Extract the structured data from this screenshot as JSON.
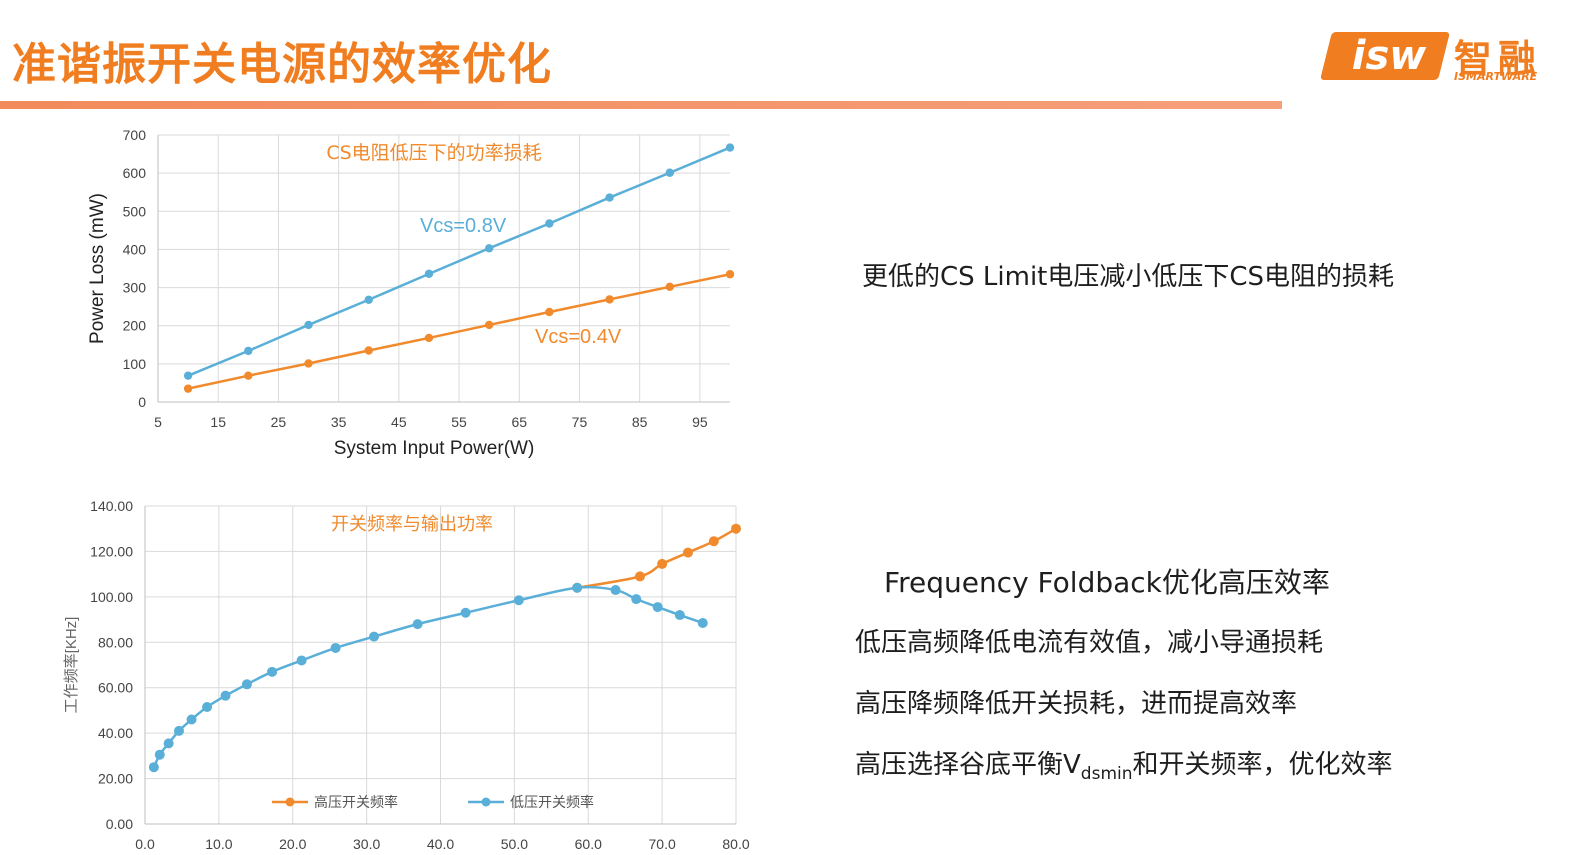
{
  "slide": {
    "title": "准谐振开关电源的效率优化"
  },
  "logo": {
    "mark": "isw",
    "cn": "智融",
    "en": "ISMARTWARE"
  },
  "notes": {
    "cs_limit": "更低的CS Limit电压减小低压下CS电阻的损耗",
    "foldback_title": "Frequency Foldback优化高压效率",
    "low_voltage": "低压高频降低电流有效值，减小导通损耗",
    "high_voltage": "高压降频降低开关损耗，进而提高效率",
    "valley_prefix": "高压选择谷底平衡V",
    "valley_sub": "dsmin",
    "valley_suffix": "和开关频率，优化效率"
  },
  "chart_data": [
    {
      "type": "line",
      "title": "CS电阻低压下的功率损耗",
      "xlabel": "System Input Power(W)",
      "ylabel": "Power Loss (mW)",
      "xlim": [
        5,
        100
      ],
      "ylim": [
        0,
        700
      ],
      "xticks": [
        "5",
        "15",
        "25",
        "35",
        "45",
        "55",
        "65",
        "75",
        "85",
        "95"
      ],
      "yticks": [
        "0",
        "100",
        "200",
        "300",
        "400",
        "500",
        "600",
        "700"
      ],
      "grid": true,
      "series": [
        {
          "name": "Vcs=0.8V",
          "color": "#5aafd8",
          "x": [
            10,
            20,
            30,
            40,
            50,
            60,
            70,
            80,
            90,
            100
          ],
          "y": [
            69,
            134,
            202,
            268,
            336,
            403,
            468,
            536,
            601,
            667
          ]
        },
        {
          "name": "Vcs=0.4V",
          "color": "#f08a2c",
          "x": [
            10,
            20,
            30,
            40,
            50,
            60,
            70,
            80,
            90,
            100
          ],
          "y": [
            35,
            69,
            101,
            135,
            168,
            202,
            236,
            269,
            302,
            335
          ]
        }
      ]
    },
    {
      "type": "line",
      "title": "开关频率与输出功率",
      "xlabel": "",
      "ylabel": "工作频率[KHz]",
      "xlim": [
        0,
        80
      ],
      "ylim": [
        0,
        140
      ],
      "xticks": [
        "0.0",
        "10.0",
        "20.0",
        "30.0",
        "40.0",
        "50.0",
        "60.0",
        "70.0",
        "80.0"
      ],
      "yticks": [
        "0.00",
        "20.00",
        "40.00",
        "60.00",
        "80.00",
        "100.00",
        "120.00",
        "140.00"
      ],
      "grid": true,
      "legend": "bottom",
      "series": [
        {
          "name": "高压开关频率",
          "color": "#f08a2c",
          "x": [
            58.5,
            67.0,
            70.0,
            73.5,
            77.0,
            80.0
          ],
          "y": [
            104.0,
            109.0,
            114.5,
            119.5,
            124.5,
            130.0
          ]
        },
        {
          "name": "低压开关频率",
          "color": "#5aafd8",
          "x": [
            1.2,
            2.0,
            3.2,
            4.6,
            6.3,
            8.4,
            10.9,
            13.8,
            17.2,
            21.2,
            25.8,
            31.0,
            36.9,
            43.4,
            50.6,
            58.5,
            63.7,
            66.5,
            69.4,
            72.4,
            75.5
          ],
          "y": [
            25.0,
            30.5,
            35.5,
            41.0,
            46.0,
            51.5,
            56.5,
            61.5,
            67.0,
            72.0,
            77.5,
            82.5,
            88.0,
            93.0,
            98.5,
            104.0,
            103.0,
            99.0,
            95.5,
            92.0,
            88.5
          ]
        }
      ]
    }
  ]
}
